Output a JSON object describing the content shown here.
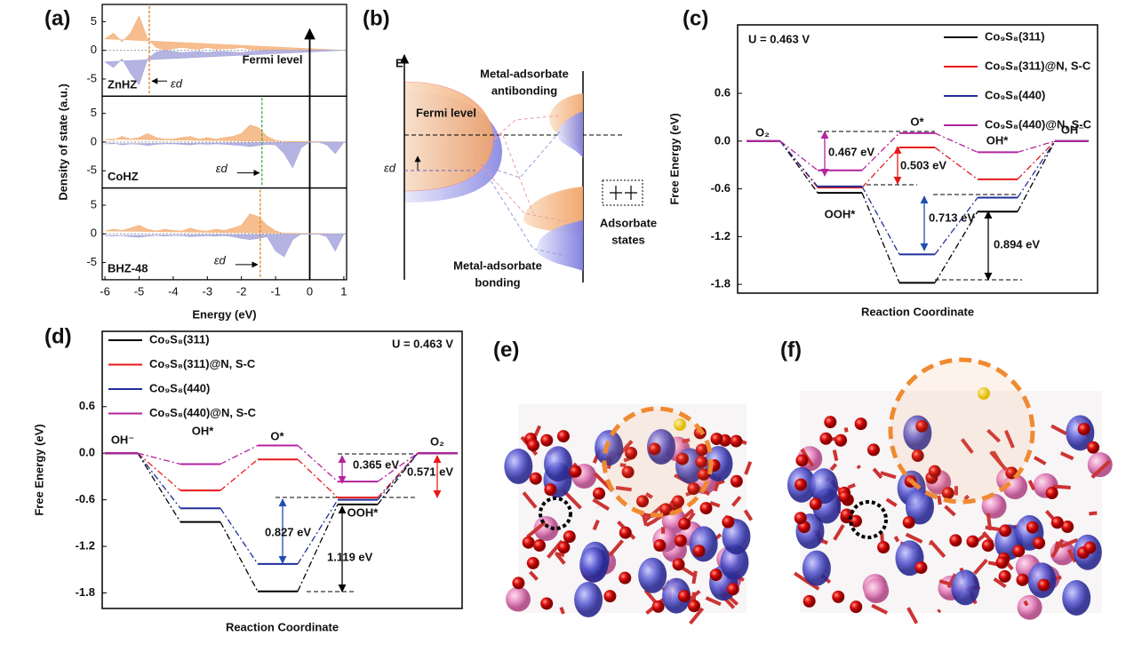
{
  "panel_labels": [
    "(a)",
    "(b)",
    "(c)",
    "(d)",
    "(e)",
    "(f)"
  ],
  "chart_data": [
    {
      "type": "area",
      "label": "ZnHZ",
      "xlim": [
        -6.08,
        1.08
      ],
      "ylim": [
        -8,
        8
      ],
      "yticks": [
        -5,
        0,
        5
      ],
      "x": [
        -6,
        -5.75,
        -5.5,
        -5.25,
        -5,
        -4.75,
        -4.5,
        -4.25,
        -4,
        -3.75,
        -3.5,
        -3.25,
        -3,
        -2.75,
        -2.5,
        -2.25,
        -2,
        -1.75,
        -1.5,
        -1.25,
        -1,
        -0.75,
        -0.5,
        -0.25,
        0,
        0.25,
        0.5,
        0.75,
        1
      ],
      "series": [
        {
          "color": "#f5b27a",
          "values": [
            2,
            3,
            1.5,
            3,
            6,
            2,
            0.5,
            0,
            0.3,
            0.5,
            0.3,
            0.2,
            0.5,
            0.2,
            0.3,
            0.3,
            0.5,
            0.2,
            0.1,
            0,
            0,
            0,
            0,
            0,
            0,
            0,
            0,
            0,
            0
          ]
        },
        {
          "color": "#a7a6dc",
          "values": [
            -2,
            -3,
            -1.5,
            -4,
            -6,
            -1.5,
            -0.3,
            0,
            -0.2,
            -0.4,
            -0.3,
            -0.2,
            -0.4,
            -0.2,
            -0.2,
            -0.3,
            -0.4,
            -0.2,
            -0.1,
            0,
            0,
            0,
            0,
            0,
            0,
            0,
            0,
            0,
            0
          ]
        }
      ],
      "band_center": -4.7,
      "band_center_color": "#e07b20",
      "band_center_label": "εd",
      "fermi_level": {
        "value": 0,
        "label": "Fermi level"
      }
    },
    {
      "type": "area",
      "label": "CoHZ",
      "ylabel": "Density of state (a.u.)",
      "xlim": [
        -6.08,
        1.08
      ],
      "ylim": [
        -8,
        8
      ],
      "yticks": [
        -5,
        0,
        5
      ],
      "x": [
        -6,
        -5.75,
        -5.5,
        -5.25,
        -5,
        -4.75,
        -4.5,
        -4.25,
        -4,
        -3.75,
        -3.5,
        -3.25,
        -3,
        -2.75,
        -2.5,
        -2.25,
        -2,
        -1.75,
        -1.5,
        -1.25,
        -1,
        -0.75,
        -0.5,
        -0.25,
        0,
        0.25,
        0.5,
        0.75,
        1
      ],
      "series": [
        {
          "color": "#f5b27a",
          "values": [
            0.5,
            0.3,
            1,
            0.5,
            0.8,
            1.5,
            0.8,
            0.5,
            0.5,
            0.8,
            1,
            0.5,
            0.8,
            0.5,
            0.8,
            1,
            1.5,
            3,
            2.5,
            1,
            0.3,
            0.1,
            0,
            0,
            0,
            0,
            0,
            0,
            0
          ]
        },
        {
          "color": "#a7a6dc",
          "values": [
            -0.3,
            -0.2,
            -0.5,
            -0.3,
            -0.4,
            -0.6,
            -0.4,
            -0.3,
            -0.3,
            -0.4,
            -0.5,
            -0.3,
            -0.4,
            -0.3,
            -0.4,
            -0.5,
            -0.6,
            -0.8,
            -0.6,
            -0.4,
            -0.5,
            -2,
            -4.5,
            -1,
            0,
            0,
            -0.5,
            -2,
            0
          ]
        }
      ],
      "band_center": -1.4,
      "band_center_color": "#3aa53a",
      "band_center_label": "εd"
    },
    {
      "type": "area",
      "label": "BHZ-48",
      "xlabel": "Energy (eV)",
      "xlim": [
        -6.08,
        1.08
      ],
      "ylim": [
        -8,
        8
      ],
      "yticks": [
        -5,
        0,
        5
      ],
      "xticks": [
        -6,
        -5,
        -4,
        -3,
        -2,
        -1,
        0,
        1
      ],
      "x": [
        -6,
        -5.75,
        -5.5,
        -5.25,
        -5,
        -4.75,
        -4.5,
        -4.25,
        -4,
        -3.75,
        -3.5,
        -3.25,
        -3,
        -2.75,
        -2.5,
        -2.25,
        -2,
        -1.75,
        -1.5,
        -1.25,
        -1,
        -0.75,
        -0.5,
        -0.25,
        0,
        0.25,
        0.5,
        0.75,
        1
      ],
      "series": [
        {
          "color": "#f5b27a",
          "values": [
            0.5,
            0.8,
            0.6,
            1,
            1.5,
            0.8,
            0.5,
            0.8,
            0.6,
            0.5,
            1,
            0.6,
            0.5,
            0.8,
            0.6,
            1,
            1.5,
            3.5,
            3,
            1.5,
            0.5,
            0.1,
            0,
            0,
            0,
            0,
            0,
            0,
            0
          ]
        },
        {
          "color": "#a7a6dc",
          "values": [
            -0.3,
            -0.4,
            -0.3,
            -0.5,
            -0.6,
            -0.4,
            -0.3,
            -0.4,
            -0.3,
            -0.3,
            -0.5,
            -0.4,
            -0.3,
            -0.4,
            -0.3,
            -0.5,
            -0.8,
            -1,
            -0.8,
            -0.5,
            -3,
            -4,
            -1,
            0,
            0,
            0,
            -0.5,
            -3,
            0
          ]
        }
      ],
      "band_center": -1.45,
      "band_center_color": "#e07b20",
      "band_center_label": "εd"
    },
    {
      "type": "energy",
      "annotation": "U = 0.463  V",
      "ylabel": "Free Energy (eV)",
      "xlabel": "Reaction Coordinate",
      "categories": [
        "O₂",
        "OOH*",
        "O*",
        "OH*",
        "OH⁻"
      ],
      "ylim": [
        -1.91,
        1.46
      ],
      "yticks": [
        0.6,
        {
          "value": 0,
          "label": "0.0"
        },
        -0.6,
        -1.2,
        -1.8
      ],
      "series": [
        {
          "name": "Co₉S₈(311)",
          "color": "#000000",
          "values": [
            0,
            -0.65,
            -1.78,
            -0.886,
            0
          ]
        },
        {
          "name": "Co₉S₈(311)@N, S-C",
          "color": "#e8191a",
          "values": [
            0,
            -0.583,
            -0.08,
            -0.48,
            0
          ]
        },
        {
          "name": "Co₉S₈(440)",
          "color": "#1f2f9a",
          "values": [
            0,
            -0.57,
            -1.423,
            -0.71,
            0
          ]
        },
        {
          "name": "Co₉S₈(440)@N, S-C",
          "color": "#b4239e",
          "values": [
            0,
            -0.367,
            0.1,
            -0.14,
            0
          ]
        }
      ],
      "annotations": [
        {
          "text": "0.467 eV",
          "color": "#b4239e"
        },
        {
          "text": "0.503 eV",
          "color": "#e8191a"
        },
        {
          "text": "0.713 eV",
          "color": "#1f4fb0"
        },
        {
          "text": "0.894 eV",
          "color": "#000000"
        }
      ]
    },
    {
      "type": "energy",
      "annotation": "U = 0.463  V",
      "ylabel": "Free Energy (eV)",
      "xlabel": "Reaction Coordinate",
      "categories": [
        "OH⁻",
        "OH*",
        "O*",
        "OOH*",
        "O₂"
      ],
      "ylim": [
        -2.0,
        1.57
      ],
      "yticks": [
        0.6,
        {
          "value": 0,
          "label": "0.0"
        },
        -0.6,
        -1.2,
        -1.8
      ],
      "series": [
        {
          "name": "Co₉S₈(311)",
          "color": "#000000",
          "values": [
            0,
            -0.886,
            -1.78,
            -0.66,
            0
          ]
        },
        {
          "name": "Co₉S₈(311)@N, S-C",
          "color": "#e8191a",
          "values": [
            0,
            -0.48,
            -0.08,
            -0.571,
            0
          ]
        },
        {
          "name": "Co₉S₈(440)",
          "color": "#1f2f9a",
          "values": [
            0,
            -0.71,
            -1.427,
            -0.6,
            0
          ]
        },
        {
          "name": "Co₉S₈(440)@N, S-C",
          "color": "#b4239e",
          "values": [
            0,
            -0.14,
            0.1,
            -0.365,
            0
          ]
        }
      ],
      "annotations": [
        {
          "text": "0.365 eV",
          "color": "#b4239e"
        },
        {
          "text": "0.571 eV",
          "color": "#e8191a"
        },
        {
          "text": "0.827 eV",
          "color": "#1f4fb0"
        },
        {
          "text": "1.119 eV",
          "color": "#000000"
        }
      ]
    }
  ],
  "diagram": {
    "axis": "E",
    "fermi": "Fermi level",
    "band_center": "εd",
    "antibonding": [
      "Metal-adsorbate",
      "antibonding"
    ],
    "adsorbate": [
      "Adsorbate",
      "states"
    ],
    "bonding": [
      "Metal-adsorbate",
      "bonding"
    ]
  }
}
